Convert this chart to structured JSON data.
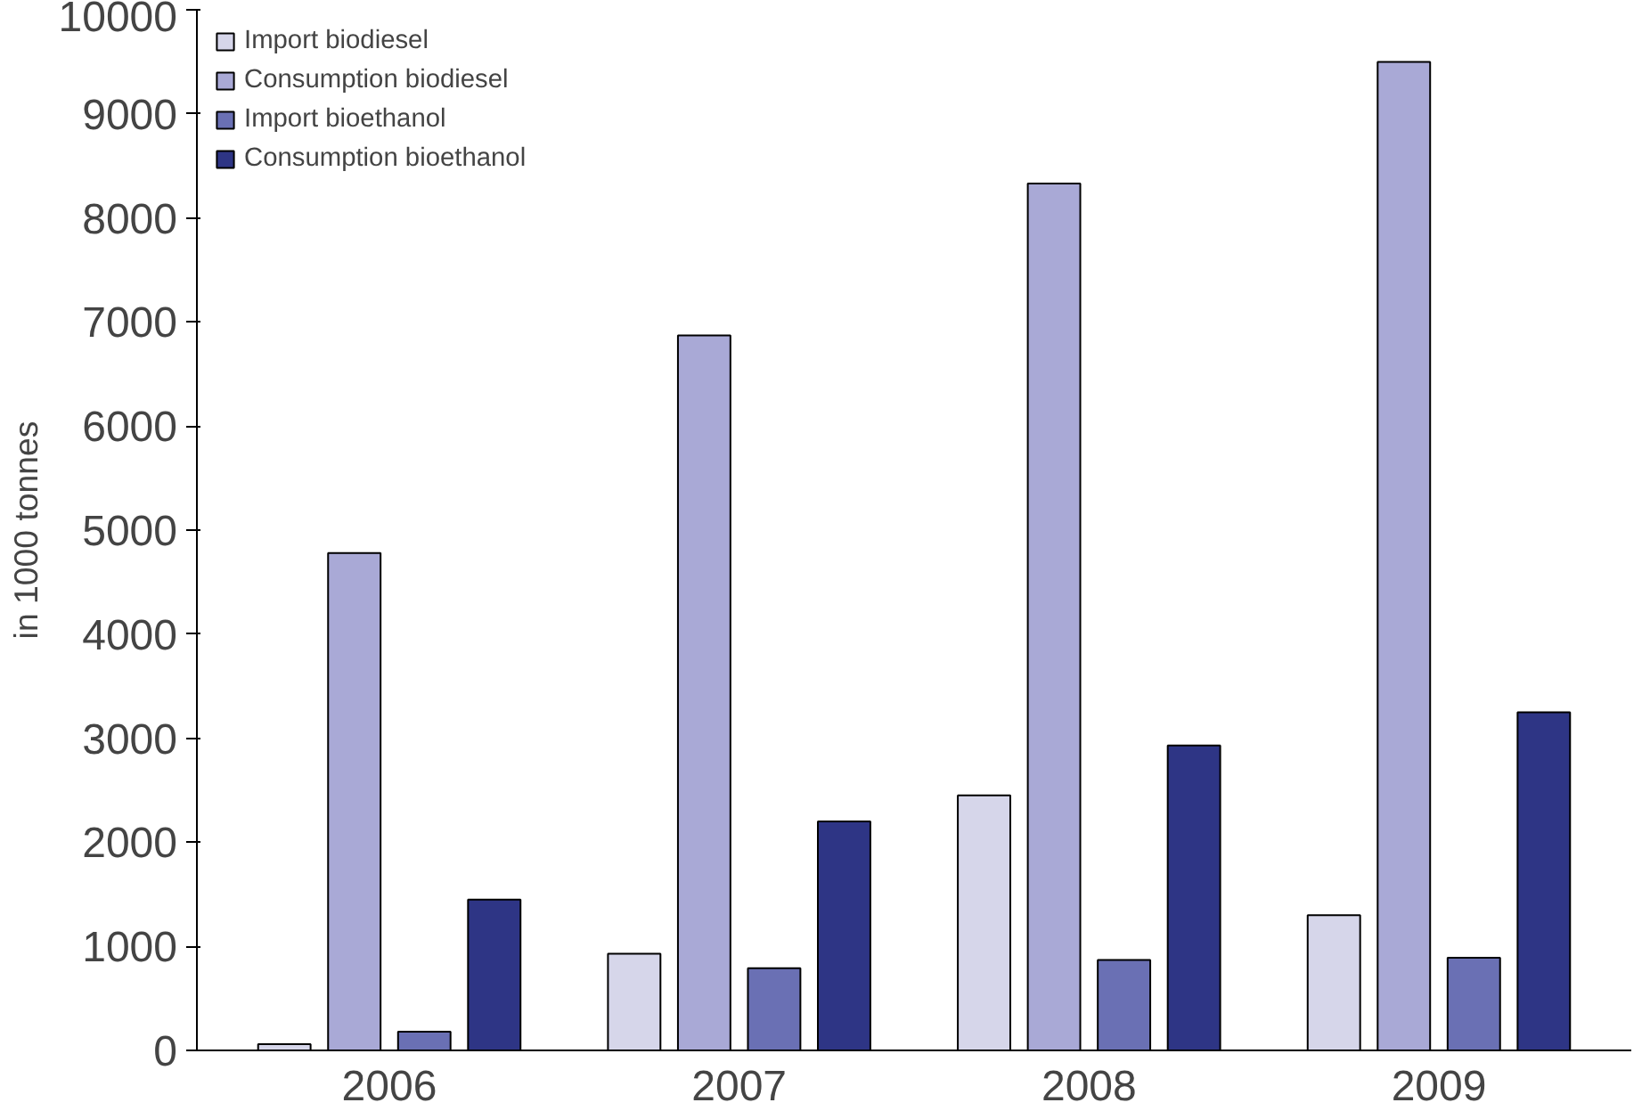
{
  "chart_data": {
    "type": "bar",
    "ylabel": "in 1000 tonnes",
    "categories": [
      "2006",
      "2007",
      "2008",
      "2009"
    ],
    "series": [
      {
        "name": "Import biodiesel",
        "color": "#d6d6ea",
        "values": [
          60,
          930,
          2450,
          1300
        ]
      },
      {
        "name": "Consumption biodiesel",
        "color": "#a9a9d6",
        "values": [
          4780,
          6870,
          8330,
          9500
        ]
      },
      {
        "name": "Import bioethanol",
        "color": "#6a70b4",
        "values": [
          180,
          790,
          870,
          890
        ]
      },
      {
        "name": "Consumption bioethanol",
        "color": "#2e3585",
        "values": [
          1450,
          2200,
          2930,
          3250
        ]
      }
    ],
    "ylim": [
      0,
      10000
    ],
    "yticks": [
      0,
      1000,
      2000,
      3000,
      4000,
      5000,
      6000,
      7000,
      8000,
      9000,
      10000
    ],
    "grid": false,
    "legend": "top left"
  }
}
